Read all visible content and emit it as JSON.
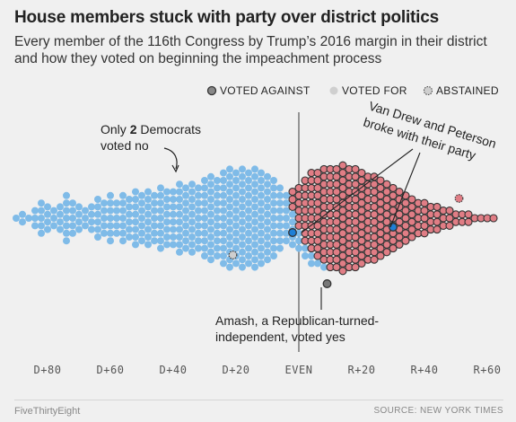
{
  "header": {
    "title": "House members stuck with party over district politics",
    "subtitle": "Every member of the 116th Congress by Trump’s 2016 margin in their district and how they voted on beginning the impeachment process"
  },
  "legend": {
    "against": "VOTED AGAINST",
    "for": "VOTED FOR",
    "abstained": "ABSTAINED"
  },
  "annotations": {
    "dems_prefix": "Only ",
    "dems_bold": "2",
    "dems_suffix": " Democrats",
    "dems_line2": "voted no",
    "reps_line1": "Van Drew and Peterson",
    "reps_line2": "broke with their party",
    "amash_line1": "Amash, a Republican-turned-",
    "amash_line2": "independent, voted yes"
  },
  "footer": {
    "brand": "FiveThirtyEight",
    "source": "SOURCE: NEW YORK TIMES"
  },
  "colors": {
    "democrat": "#7fbbe8",
    "republican": "#e07d85",
    "against_outline": "#333333",
    "legend_against": "#888888",
    "legend_for": "#cccccc",
    "highlight": "#1e7fd6",
    "background": "#f0f0f0"
  },
  "chart_data": {
    "type": "scatter",
    "title": "House members stuck with party over district politics",
    "x_axis": {
      "label": "",
      "range": [
        -90,
        65
      ],
      "ticks": [
        {
          "value": -80,
          "label": "D+80"
        },
        {
          "value": -60,
          "label": "D+60"
        },
        {
          "value": -40,
          "label": "D+40"
        },
        {
          "value": -20,
          "label": "D+20"
        },
        {
          "value": 0,
          "label": "EVEN"
        },
        {
          "value": 20,
          "label": "R+20"
        },
        {
          "value": 40,
          "label": "R+40"
        },
        {
          "value": 60,
          "label": "R+60"
        }
      ]
    },
    "grid": false,
    "legend_position": "top-right",
    "groups": [
      {
        "party": "D",
        "vote": "for",
        "count": 229
      },
      {
        "party": "D",
        "vote": "against",
        "count": 2,
        "x": [
          -2,
          30
        ]
      },
      {
        "party": "R",
        "vote": "against",
        "count": 195
      },
      {
        "party": "I",
        "vote": "for",
        "count": 1,
        "x": [
          9
        ]
      },
      {
        "party": "R",
        "vote": "abstained",
        "count": 1,
        "x": [
          51
        ]
      },
      {
        "party": "D",
        "vote": "abstained",
        "count": 1,
        "x": [
          -21
        ]
      }
    ],
    "counts_by_bin": {
      "bin_width_points": 2,
      "bins": [
        {
          "x": -90,
          "D": 1
        },
        {
          "x": -88,
          "D": 2
        },
        {
          "x": -86,
          "D": 1
        },
        {
          "x": -84,
          "D": 3
        },
        {
          "x": -82,
          "D": 5
        },
        {
          "x": -80,
          "D": 4
        },
        {
          "x": -78,
          "D": 3
        },
        {
          "x": -76,
          "D": 4
        },
        {
          "x": -74,
          "D": 7
        },
        {
          "x": -72,
          "D": 5
        },
        {
          "x": -70,
          "D": 4
        },
        {
          "x": -68,
          "D": 3
        },
        {
          "x": -66,
          "D": 4
        },
        {
          "x": -64,
          "D": 6
        },
        {
          "x": -62,
          "D": 5
        },
        {
          "x": -60,
          "D": 7
        },
        {
          "x": -58,
          "D": 5
        },
        {
          "x": -56,
          "D": 7
        },
        {
          "x": -54,
          "D": 6
        },
        {
          "x": -52,
          "D": 8
        },
        {
          "x": -50,
          "D": 7
        },
        {
          "x": -48,
          "D": 8
        },
        {
          "x": -46,
          "D": 7
        },
        {
          "x": -44,
          "D": 9
        },
        {
          "x": -42,
          "D": 8
        },
        {
          "x": -40,
          "D": 8
        },
        {
          "x": -38,
          "D": 10
        },
        {
          "x": -36,
          "D": 9
        },
        {
          "x": -34,
          "D": 10
        },
        {
          "x": -32,
          "D": 9
        },
        {
          "x": -30,
          "D": 11
        },
        {
          "x": -28,
          "D": 12
        },
        {
          "x": -26,
          "D": 11
        },
        {
          "x": -24,
          "D": 13
        },
        {
          "x": -22,
          "D": 14
        },
        {
          "x": -20,
          "D": 13
        },
        {
          "x": -18,
          "D": 14
        },
        {
          "x": -16,
          "D": 13
        },
        {
          "x": -14,
          "D": 14
        },
        {
          "x": -12,
          "D": 13
        },
        {
          "x": -10,
          "D": 12
        },
        {
          "x": -8,
          "D": 11
        },
        {
          "x": -6,
          "D": 9
        },
        {
          "x": -4,
          "D": 7
        },
        {
          "x": -2,
          "D": 5,
          "R": 3
        },
        {
          "x": 0,
          "D": 3,
          "R": 6
        },
        {
          "x": 2,
          "D": 2,
          "R": 9
        },
        {
          "x": 4,
          "D": 2,
          "R": 11
        },
        {
          "x": 6,
          "D": 1,
          "R": 12
        },
        {
          "x": 8,
          "D": 1,
          "R": 13
        },
        {
          "x": 10,
          "R": 14
        },
        {
          "x": 12,
          "R": 14
        },
        {
          "x": 14,
          "R": 15
        },
        {
          "x": 16,
          "R": 14
        },
        {
          "x": 18,
          "R": 14
        },
        {
          "x": 20,
          "R": 13
        },
        {
          "x": 22,
          "R": 12
        },
        {
          "x": 24,
          "R": 12
        },
        {
          "x": 26,
          "R": 11
        },
        {
          "x": 28,
          "R": 10
        },
        {
          "x": 30,
          "R": 9
        },
        {
          "x": 32,
          "R": 8
        },
        {
          "x": 34,
          "R": 7
        },
        {
          "x": 36,
          "R": 6
        },
        {
          "x": 38,
          "R": 5
        },
        {
          "x": 40,
          "R": 5
        },
        {
          "x": 42,
          "R": 4
        },
        {
          "x": 44,
          "R": 4
        },
        {
          "x": 46,
          "R": 3
        },
        {
          "x": 48,
          "R": 3
        },
        {
          "x": 50,
          "R": 2
        },
        {
          "x": 52,
          "R": 2
        },
        {
          "x": 54,
          "R": 2
        },
        {
          "x": 56,
          "R": 1
        },
        {
          "x": 58,
          "R": 1
        },
        {
          "x": 60,
          "R": 1
        },
        {
          "x": 62,
          "R": 1
        }
      ]
    }
  }
}
